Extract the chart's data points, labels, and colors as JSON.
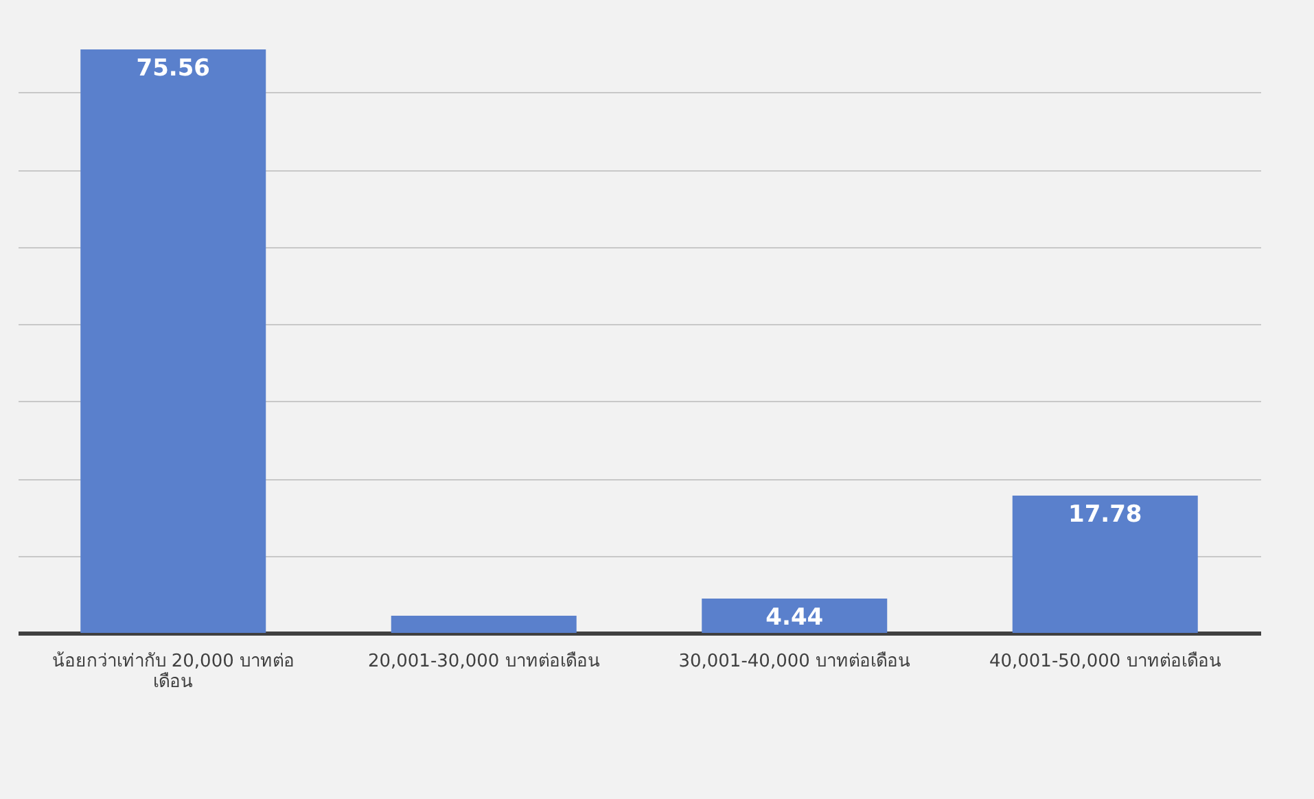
{
  "chart_data": {
    "type": "bar",
    "categories": [
      "น้อยกว่าเท่ากับ 20,000 บาทต่อเดือน",
      "20,001-30,000 บาทต่อเดือน",
      "30,001-40,000 บาทต่อเดือน",
      "40,001-50,000 บาทต่อเดือน"
    ],
    "values": [
      75.56,
      2.22,
      4.44,
      17.78
    ],
    "value_labels": [
      "75.56",
      null,
      "4.44",
      "17.78"
    ],
    "color": "#5a80cc",
    "yticks": [
      {
        "value": 0,
        "label": null
      },
      {
        "value": 10,
        "label": null
      },
      {
        "value": 20,
        "label": null
      },
      {
        "value": 30,
        "label": null
      },
      {
        "value": 40,
        "label": null
      },
      {
        "value": 50,
        "label": null
      },
      {
        "value": 60,
        "label": null
      },
      {
        "value": 70,
        "label": null
      }
    ],
    "grid": "y",
    "tick_labels": "x"
  }
}
